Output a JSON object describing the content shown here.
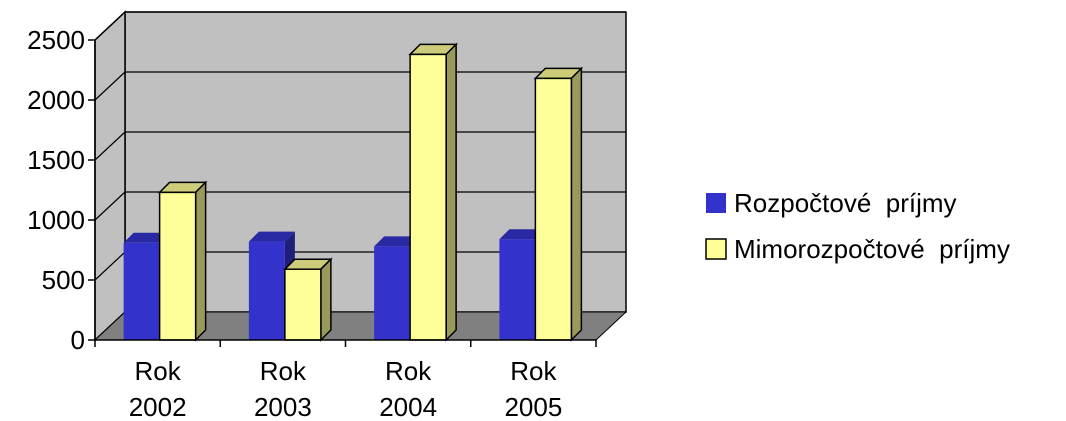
{
  "chart_data": {
    "type": "bar",
    "categories": [
      [
        "Rok",
        "2002"
      ],
      [
        "Rok",
        "2003"
      ],
      [
        "Rok",
        "2004"
      ],
      [
        "Rok",
        "2005"
      ]
    ],
    "series": [
      {
        "name": "Rozpočtové  príjmy",
        "color": "#3333cc",
        "values": [
          810,
          820,
          780,
          840
        ]
      },
      {
        "name": "Mimorozpočtové  príjmy",
        "color": "#ffff99",
        "values": [
          1230,
          590,
          2380,
          2180
        ]
      }
    ],
    "yticks": [
      "0",
      "500",
      "1000",
      "1500",
      "2000",
      "2500"
    ],
    "ylim": [
      0,
      2500
    ],
    "grid": true,
    "legend": "right",
    "style": "3d",
    "wall_color": "#c0c0c0",
    "floor_color": "#808080"
  }
}
